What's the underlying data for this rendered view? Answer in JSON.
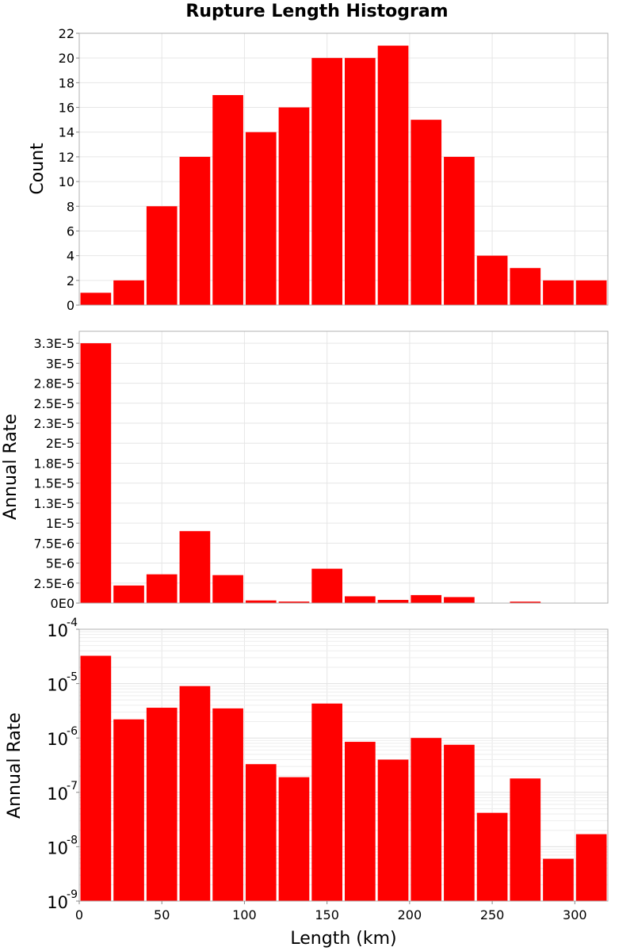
{
  "chart_data": {
    "title": "Rupture Length Histogram",
    "type": "bar",
    "shared_x": {
      "label": "Length (km)",
      "range": [
        0,
        320
      ],
      "ticks": [
        0,
        50,
        100,
        150,
        200,
        250,
        300
      ],
      "bin_width": 20,
      "bin_starts": [
        0,
        20,
        40,
        60,
        80,
        100,
        120,
        140,
        160,
        180,
        200,
        220,
        240,
        260,
        280,
        300
      ]
    },
    "bar_color": "#ff0000",
    "grid": true,
    "panels": [
      {
        "ylabel": "Count",
        "yscale": "linear",
        "ylim": [
          0,
          22
        ],
        "yticks": [
          0,
          2,
          4,
          6,
          8,
          10,
          12,
          14,
          16,
          18,
          20,
          22
        ],
        "ytick_labels": [
          "0",
          "2",
          "4",
          "6",
          "8",
          "10",
          "12",
          "14",
          "16",
          "18",
          "20",
          "22"
        ],
        "values": [
          1,
          2,
          8,
          12,
          17,
          14,
          16,
          20,
          20,
          21,
          15,
          12,
          4,
          3,
          2,
          2
        ]
      },
      {
        "ylabel": "Annual Rate",
        "yscale": "linear",
        "ylim": [
          0,
          3.4e-05
        ],
        "yticks": [
          0,
          2.5e-06,
          5e-06,
          7.5e-06,
          1e-05,
          1.25e-05,
          1.5e-05,
          1.75e-05,
          2e-05,
          2.25e-05,
          2.5e-05,
          2.75e-05,
          3e-05,
          3.25e-05
        ],
        "ytick_labels": [
          "0E0",
          "2.5E-6",
          "5E-6",
          "7.5E-6",
          "1E-5",
          "1.3E-5",
          "1.5E-5",
          "1.8E-5",
          "2E-5",
          "2.3E-5",
          "2.5E-5",
          "2.8E-5",
          "3E-5",
          "3.3E-5"
        ],
        "values": [
          3.25e-05,
          2.2e-06,
          3.6e-06,
          9e-06,
          3.5e-06,
          3.3e-07,
          1.9e-07,
          4.3e-06,
          8.5e-07,
          4e-07,
          1e-06,
          7.5e-07,
          4.2e-08,
          1.8e-07,
          6e-09,
          1.7e-08
        ]
      },
      {
        "ylabel": "Annual Rate",
        "yscale": "log",
        "ylim": [
          1e-09,
          0.0001
        ],
        "yticks": [
          1e-09,
          1e-08,
          1e-07,
          1e-06,
          1e-05,
          0.0001
        ],
        "ytick_labels": [
          {
            "base": "10",
            "exp": "-9"
          },
          {
            "base": "10",
            "exp": "-8"
          },
          {
            "base": "10",
            "exp": "-7"
          },
          {
            "base": "10",
            "exp": "-6"
          },
          {
            "base": "10",
            "exp": "-5"
          },
          {
            "base": "10",
            "exp": "-4"
          }
        ],
        "values": [
          3.25e-05,
          2.2e-06,
          3.6e-06,
          9e-06,
          3.5e-06,
          3.3e-07,
          1.9e-07,
          4.3e-06,
          8.5e-07,
          4e-07,
          1e-06,
          7.5e-07,
          4.2e-08,
          1.8e-07,
          6e-09,
          1.7e-08
        ]
      }
    ]
  }
}
